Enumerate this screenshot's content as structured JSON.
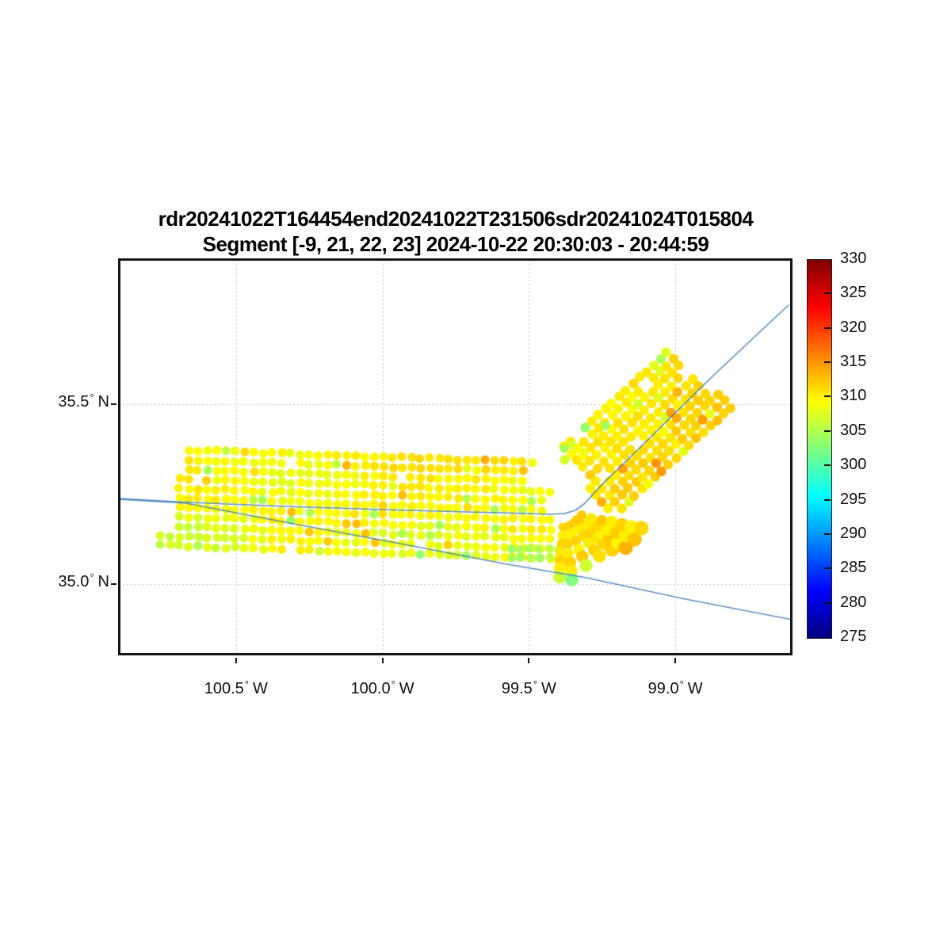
{
  "figure": {
    "title_line1": "rdr20241022T164454end20241022T231506sdr20241024T015804",
    "title_line2": "Segment [-9, 21, 22, 23] 2024-10-22 20:30:03 - 20:44:59"
  },
  "axes": {
    "xlim_deg_east": [
      -100.9,
      -98.6
    ],
    "ylim_deg_north": [
      34.8,
      35.9
    ],
    "xticks": [
      {
        "value": -100.5,
        "label": "100.5",
        "hemisphere": "W"
      },
      {
        "value": -100.0,
        "label": "100.0",
        "hemisphere": "W"
      },
      {
        "value": -99.5,
        "label": "99.5",
        "hemisphere": "W"
      },
      {
        "value": -99.0,
        "label": "99.0",
        "hemisphere": "W"
      }
    ],
    "yticks": [
      {
        "value": 35.5,
        "label": "35.5",
        "hemisphere": "N"
      },
      {
        "value": 35.0,
        "label": "35.0",
        "hemisphere": "N"
      }
    ],
    "grid_style": "dotted",
    "grid_color": "#b3b3b3",
    "box_color": "#151515"
  },
  "colorbar": {
    "min": 275,
    "max": 330,
    "ticks": [
      275,
      280,
      285,
      290,
      295,
      300,
      305,
      310,
      315,
      320,
      325,
      330
    ],
    "colormap": "jet"
  },
  "chart_data": {
    "type": "scatter",
    "title": "rdr20241022T164454end20241022T231506sdr20241024T015804 / Segment [-9, 21, 22, 23] 2024-10-22 20:30:03 - 20:44:59",
    "xlabel": "",
    "ylabel": "",
    "value_scale_range": [
      275,
      330
    ],
    "observed_value_range": [
      300,
      316
    ],
    "dominant_value": 310,
    "marker_color_notes": "mostly yellow ~309-311, golden/orange speckles ~312-315, sparse yellow-green/green ~301-307",
    "swath_grids": [
      {
        "name": "west-east-swath",
        "origin": {
          "lon": -100.7566,
          "lat": 35.3742
        },
        "col_step": {
          "dlon": 0.03166,
          "dlat": -0.000875
        },
        "row_step": {
          "dlon": 0.0,
          "dlat": -0.02662
        },
        "cols": 42,
        "rows": 11,
        "marker_radius_px": 5.6,
        "value_base": 309.4,
        "row_start_by_band": [
          3,
          2,
          0
        ],
        "top_rows_orange_bias": 1.9,
        "bottom_rows_green_bias": -0.6,
        "bottom_left_green_bias": -1.2
      },
      {
        "name": "northeast-diagonal-swath",
        "origin": {
          "lon": -99.4009,
          "lat": 35.3632
        },
        "col_step": {
          "dlon": 0.023246,
          "dlat": 0.017512
        },
        "row_step": {
          "dlon": 0.021485,
          "dlat": -0.018898
        },
        "cols": 18,
        "rows": 10,
        "marker_radius_px": 6.2,
        "value_base": 310.4,
        "right_end_orange_bias": 0.9,
        "upper_edge_green_speckle_prob": 0.25
      },
      {
        "name": "under-junction-block",
        "origin": {
          "lon": -99.5606,
          "lat": 35.0992
        },
        "col_step": {
          "dlon": 0.03247,
          "dlat": 0.0
        },
        "row_step": {
          "dlon": 0.0,
          "dlat": -0.0264
        },
        "cols": 6,
        "rows": 2,
        "marker_radius_px": 5.4,
        "value_base": 307.0
      }
    ],
    "fan": {
      "pivot": {
        "lon": -99.382,
        "lat": 35.2004
      },
      "rays": [
        {
          "end": {
            "lon": -99.3955,
            "lat": 35.0178
          },
          "dots": 7,
          "tip_value": 306.5
        },
        {
          "end": {
            "lon": -99.3522,
            "lat": 35.0134
          },
          "dots": 7,
          "tip_value": 302.5
        },
        {
          "end": {
            "lon": -99.3062,
            "lat": 35.053
          },
          "dots": 6,
          "tip_value": 306.8
        },
        {
          "end": {
            "lon": -99.2602,
            "lat": 35.0772
          },
          "dots": 6,
          "tip_value": 311.0
        },
        {
          "end": {
            "lon": -99.2169,
            "lat": 35.097
          },
          "dots": 6,
          "tip_value": 311.8
        },
        {
          "end": {
            "lon": -99.1709,
            "lat": 35.1014
          },
          "dots": 7,
          "tip_value": 313.5
        },
        {
          "end": {
            "lon": -99.1384,
            "lat": 35.1234
          },
          "dots": 7,
          "tip_value": 312.5
        },
        {
          "end": {
            "lon": -99.1141,
            "lat": 35.1542
          },
          "dots": 7,
          "tip_value": 311.5
        }
      ],
      "value_base": 310.3
    },
    "stray_dots": [
      {
        "lon": -99.3793,
        "lat": 35.3764,
        "value": 304.5
      },
      {
        "lon": -99.3549,
        "lat": 35.3874,
        "value": 307.0
      },
      {
        "lon": -99.2386,
        "lat": 35.4402,
        "value": 304.0
      },
      {
        "lon": -99.3117,
        "lat": 35.3654,
        "value": 308.5
      }
    ],
    "map_lines": [
      {
        "name": "track-road-line",
        "color": "#3c78b5",
        "points": [
          [
            -100.9,
            35.2378
          ],
          [
            -100.6565,
            35.2268
          ],
          [
            -100.3318,
            35.2158
          ],
          [
            -99.9989,
            35.207
          ],
          [
            -99.7094,
            35.2004
          ],
          [
            -99.5011,
            35.196
          ],
          [
            -99.4307,
            35.1938
          ],
          [
            -99.3793,
            35.196
          ],
          [
            -99.3414,
            35.2048
          ],
          [
            -99.3117,
            35.2224
          ],
          [
            -99.2846,
            35.2466
          ],
          [
            -99.2494,
            35.2774
          ],
          [
            -99.1412,
            35.3632
          ],
          [
            -99.0059,
            35.471
          ],
          [
            -98.8706,
            35.5788
          ],
          [
            -98.7353,
            35.6822
          ],
          [
            -98.6135,
            35.7746
          ]
        ]
      },
      {
        "name": "southern-road-line",
        "color": "#3c78b5",
        "points": [
          [
            -100.9,
            35.2356
          ],
          [
            -100.67,
            35.2246
          ],
          [
            -100.3318,
            35.1718
          ],
          [
            -99.953,
            35.1146
          ],
          [
            -99.5741,
            35.0552
          ],
          [
            -99.3035,
            35.0178
          ],
          [
            -98.9788,
            34.9606
          ],
          [
            -98.6,
            34.9012
          ]
        ]
      }
    ]
  }
}
